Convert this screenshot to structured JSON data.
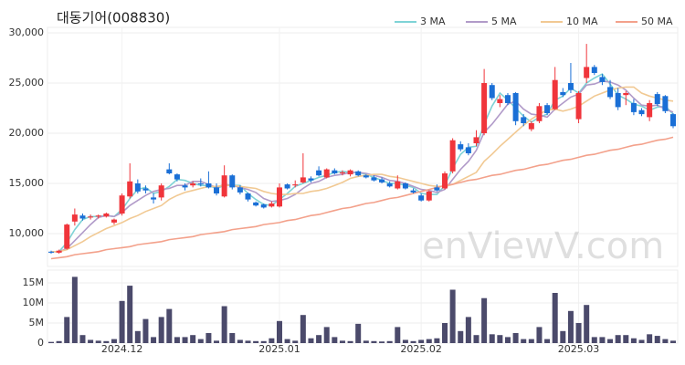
{
  "chart_data": [
    {
      "type": "candlestick",
      "title": "대동기어(008830)",
      "watermark": "enViewV.com",
      "up_color": "#f0353b",
      "down_color": "#1a6fd6",
      "grid": true,
      "legend": "top-right",
      "categories": [
        null,
        null,
        null,
        null,
        null,
        null,
        null,
        null,
        null,
        "2024.12",
        null,
        null,
        null,
        null,
        null,
        null,
        null,
        null,
        null,
        null,
        null,
        null,
        null,
        null,
        null,
        null,
        null,
        null,
        null,
        "2025.01",
        null,
        null,
        null,
        null,
        null,
        null,
        null,
        null,
        null,
        null,
        null,
        null,
        null,
        null,
        null,
        null,
        null,
        "2025.02",
        null,
        null,
        null,
        null,
        null,
        null,
        null,
        null,
        null,
        null,
        null,
        null,
        null,
        null,
        null,
        null,
        null,
        null,
        null,
        "2025.03",
        null,
        null,
        null,
        null,
        null,
        null,
        null,
        null,
        null,
        null,
        null,
        null
      ],
      "open": [
        8200,
        8100,
        8500,
        11200,
        11800,
        11600,
        11700,
        11700,
        11100,
        12000,
        13700,
        15000,
        14500,
        13600,
        13600,
        16400,
        15900,
        14800,
        14800,
        15000,
        15000,
        14600,
        13700,
        15800,
        14600,
        14000,
        13100,
        12900,
        12700,
        12700,
        14900,
        14800,
        15100,
        15500,
        16300,
        15600,
        16300,
        16000,
        15900,
        16200,
        15800,
        15600,
        15400,
        15000,
        14500,
        15000,
        14300,
        13800,
        13300,
        14600,
        14500,
        16200,
        18900,
        18600,
        19000,
        20000,
        24800,
        23000,
        23800,
        24000,
        21600,
        20400,
        21200,
        22800,
        22400,
        24100,
        25000,
        21400,
        25500,
        26600,
        25600,
        24600,
        24000,
        23800,
        23000,
        22300,
        21600,
        23900,
        23700,
        21900
      ],
      "high": [
        8300,
        8400,
        11000,
        12500,
        12000,
        11900,
        11900,
        12100,
        11500,
        14000,
        17000,
        15400,
        14800,
        14000,
        15000,
        17000,
        16000,
        15000,
        15200,
        15500,
        16200,
        15000,
        16800,
        15900,
        14800,
        14100,
        13200,
        13000,
        13200,
        15000,
        15000,
        15300,
        18000,
        15700,
        16700,
        16500,
        16500,
        16300,
        16400,
        16300,
        15900,
        15800,
        15600,
        15200,
        15800,
        15100,
        14500,
        14000,
        14300,
        14900,
        16200,
        19500,
        19200,
        19000,
        20300,
        26400,
        25000,
        23800,
        24000,
        24100,
        21900,
        21200,
        23000,
        23000,
        26600,
        24500,
        27000,
        24200,
        28900,
        26800,
        25900,
        25300,
        24500,
        24200,
        23400,
        22500,
        23300,
        24100,
        23800,
        22000
      ],
      "low": [
        8000,
        8000,
        8400,
        10800,
        11300,
        11400,
        11500,
        11600,
        10900,
        11800,
        13500,
        14000,
        14000,
        13000,
        13300,
        15900,
        15200,
        14300,
        14600,
        14700,
        14500,
        13800,
        13600,
        14400,
        13900,
        13200,
        12700,
        12500,
        12600,
        12600,
        14400,
        14600,
        15000,
        15100,
        15700,
        15500,
        15900,
        15800,
        15700,
        15700,
        15500,
        15200,
        15000,
        14600,
        14400,
        14400,
        14000,
        13200,
        13200,
        14200,
        14400,
        16000,
        18200,
        17800,
        18700,
        19800,
        23300,
        22600,
        22800,
        20800,
        20700,
        20200,
        21000,
        21800,
        22300,
        23600,
        24000,
        21000,
        25000,
        25800,
        24800,
        23400,
        22300,
        22800,
        21800,
        21700,
        21200,
        22700,
        22000,
        20500
      ],
      "close": [
        8100,
        8300,
        10900,
        11900,
        11500,
        11700,
        11800,
        12000,
        11400,
        13800,
        15200,
        14200,
        14300,
        13400,
        14800,
        16000,
        15400,
        14600,
        15000,
        14900,
        14600,
        14000,
        15800,
        14600,
        14100,
        13400,
        12800,
        12600,
        13000,
        14600,
        14500,
        14900,
        15600,
        15300,
        15800,
        16400,
        16000,
        16100,
        16300,
        15800,
        15600,
        15300,
        15100,
        14700,
        15200,
        14500,
        14100,
        13300,
        14200,
        14300,
        16000,
        19300,
        18400,
        18000,
        19600,
        25000,
        23500,
        23400,
        23000,
        21200,
        21000,
        21000,
        22700,
        22000,
        25300,
        23800,
        24300,
        24000,
        26600,
        26000,
        25100,
        23600,
        22600,
        24000,
        22100,
        21900,
        23000,
        22900,
        22200,
        20700
      ],
      "series": [
        {
          "name": "3 MA",
          "color": "#7fd3d6",
          "values": [
            8200,
            8200,
            9100,
            10400,
            11400,
            11700,
            11700,
            11800,
            11700,
            12400,
            13500,
            14400,
            14600,
            14000,
            14200,
            14700,
            15400,
            15300,
            15000,
            14800,
            14800,
            14500,
            14800,
            14800,
            14800,
            14000,
            13400,
            12900,
            12800,
            13400,
            14000,
            14700,
            15000,
            15300,
            15600,
            15800,
            16100,
            16200,
            16100,
            16100,
            15900,
            15600,
            15300,
            15000,
            15000,
            14800,
            14600,
            14000,
            13900,
            13900,
            14800,
            16500,
            17900,
            18600,
            18700,
            20900,
            22700,
            24000,
            23300,
            22500,
            21700,
            21100,
            21600,
            21900,
            23300,
            23700,
            24500,
            24000,
            25000,
            25500,
            25900,
            24900,
            23800,
            23400,
            22900,
            22700,
            22300,
            22600,
            22700,
            21900
          ]
        },
        {
          "name": "5 MA",
          "color": "#b19bc9",
          "values": [
            8200,
            8200,
            8500,
            9300,
            10100,
            10900,
            11600,
            11800,
            11700,
            12100,
            12800,
            13300,
            13800,
            14200,
            14400,
            14500,
            14800,
            14800,
            15200,
            15200,
            14900,
            14600,
            14900,
            14800,
            14600,
            14400,
            14100,
            13500,
            13200,
            13300,
            13500,
            13900,
            14500,
            15000,
            15200,
            15600,
            15800,
            15900,
            16100,
            16100,
            16000,
            15800,
            15600,
            15300,
            15200,
            15000,
            14700,
            14400,
            14300,
            14100,
            14400,
            15400,
            16400,
            17200,
            18300,
            20100,
            20900,
            21900,
            22900,
            23200,
            22400,
            21900,
            21800,
            21600,
            22400,
            23000,
            23600,
            23900,
            24800,
            24900,
            25200,
            25100,
            24800,
            24300,
            23500,
            22800,
            22700,
            22800,
            22400,
            22100
          ]
        },
        {
          "name": "10 MA",
          "color": "#f1c993",
          "values": [
            8200,
            8200,
            8400,
            8800,
            9200,
            9700,
            10100,
            10500,
            10800,
            11100,
            11500,
            11800,
            12200,
            12500,
            12800,
            13400,
            13800,
            14100,
            14300,
            14500,
            14700,
            14700,
            14800,
            14800,
            14700,
            14600,
            14500,
            14200,
            14000,
            13900,
            13900,
            14000,
            14000,
            14200,
            14300,
            14500,
            14800,
            15100,
            15500,
            15700,
            15800,
            15900,
            15900,
            15700,
            15600,
            15400,
            15200,
            15000,
            14800,
            14700,
            14700,
            14900,
            15300,
            15700,
            16100,
            17200,
            17900,
            18700,
            19400,
            20100,
            20800,
            21400,
            21900,
            22300,
            22400,
            22200,
            22400,
            22700,
            23200,
            23700,
            24000,
            24300,
            24500,
            24600,
            24600,
            24000,
            23700,
            23500,
            23300,
            23200
          ]
        },
        {
          "name": "50 MA",
          "color": "#f3a18b",
          "values": [
            7500,
            7600,
            7700,
            7900,
            8000,
            8100,
            8200,
            8400,
            8500,
            8600,
            8700,
            8900,
            9000,
            9100,
            9200,
            9400,
            9500,
            9600,
            9700,
            9900,
            10000,
            10100,
            10200,
            10400,
            10500,
            10600,
            10700,
            10900,
            11000,
            11100,
            11300,
            11400,
            11600,
            11800,
            11900,
            12100,
            12300,
            12500,
            12600,
            12800,
            13000,
            13100,
            13300,
            13500,
            13600,
            13800,
            14000,
            14200,
            14400,
            14600,
            14800,
            14900,
            15100,
            15300,
            15400,
            15600,
            15800,
            15900,
            16100,
            16300,
            16400,
            16600,
            16800,
            16900,
            17100,
            17300,
            17400,
            17600,
            17800,
            17900,
            18100,
            18300,
            18400,
            18600,
            18800,
            18900,
            19100,
            19300,
            19400,
            19600
          ]
        }
      ],
      "ylim": [
        7000,
        30000
      ],
      "yticks": [
        {
          "value": 10000,
          "label": "10,000"
        },
        {
          "value": 15000,
          "label": "15,000"
        },
        {
          "value": 20000,
          "label": "20,000"
        },
        {
          "value": 25000,
          "label": "25,000"
        },
        {
          "value": 30000,
          "label": "30,000"
        }
      ]
    },
    {
      "type": "bar",
      "color": "#4b4a6b",
      "values": [
        300000,
        500000,
        6500000,
        16500000,
        2000000,
        800000,
        600000,
        500000,
        1000000,
        10500000,
        14300000,
        3000000,
        6000000,
        1500000,
        6500000,
        8500000,
        1500000,
        1500000,
        2000000,
        1000000,
        2500000,
        600000,
        9200000,
        2500000,
        800000,
        600000,
        500000,
        500000,
        1200000,
        5500000,
        1000000,
        600000,
        7000000,
        1200000,
        2000000,
        4000000,
        1500000,
        600000,
        500000,
        4800000,
        600000,
        500000,
        400000,
        500000,
        4000000,
        800000,
        500000,
        800000,
        1000000,
        1200000,
        5000000,
        13300000,
        3000000,
        6500000,
        2000000,
        11200000,
        2200000,
        2000000,
        1500000,
        2500000,
        1000000,
        1000000,
        4000000,
        1000000,
        12500000,
        3000000,
        8000000,
        5000000,
        9500000,
        1500000,
        1500000,
        1000000,
        2000000,
        2000000,
        1200000,
        800000,
        2200000,
        1800000,
        1000000,
        600000
      ],
      "ylim": [
        0,
        17500000
      ],
      "yticks": [
        0,
        {
          "value": 5000000,
          "label": "5M"
        },
        {
          "value": 10000000,
          "label": "10M"
        },
        {
          "value": 15000000,
          "label": "15M"
        }
      ]
    }
  ]
}
